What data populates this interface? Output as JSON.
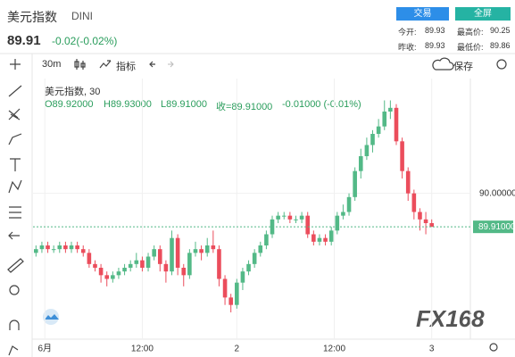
{
  "header": {
    "title": "美元指数",
    "symbol": "DINI",
    "price": "89.91",
    "change": "-0.02(-0.02%)",
    "trade_button": "交易",
    "fullscreen_button": "全屏",
    "stats": [
      {
        "label": "今开:",
        "value": "89.93"
      },
      {
        "label": "最高价:",
        "value": "90.25"
      },
      {
        "label": "昨收:",
        "value": "89.93"
      },
      {
        "label": "最低价:",
        "value": "89.86"
      }
    ]
  },
  "toolbar": {
    "interval": "30m",
    "indicators": "指标",
    "save": "保存"
  },
  "legend": {
    "name": "美元指数, 30",
    "open": "O89.92000",
    "high": "H89.93000",
    "low": "L89.91000",
    "close": "收=89.91000",
    "change": "-0.01000 (-0.01%)"
  },
  "watermark": "FX168",
  "chart_data": {
    "type": "candlestick",
    "up_color": "#53b987",
    "down_color": "#eb4d5c",
    "xlim": [
      -0.5,
      67.5
    ],
    "xticks": [
      {
        "value": 1.5,
        "label": "6月"
      },
      {
        "value": 18,
        "label": "12:00"
      },
      {
        "value": 34,
        "label": "2"
      },
      {
        "value": 50.5,
        "label": "12:00"
      },
      {
        "value": 67,
        "label": "3"
      }
    ],
    "ylim": [
      89.62,
      90.28
    ],
    "yticks": [
      {
        "value": 90,
        "label": "90.00000"
      }
    ],
    "last_label": "89.91000",
    "grid": true,
    "series": [
      {
        "name": "美元指数",
        "open": [
          89.84,
          89.85,
          89.86,
          89.85,
          89.85,
          89.86,
          89.85,
          89.86,
          89.85,
          89.84,
          89.81,
          89.8,
          89.78,
          89.77,
          89.78,
          89.79,
          89.8,
          89.81,
          89.82,
          89.8,
          89.83,
          89.85,
          89.81,
          89.79,
          89.88,
          89.8,
          89.78,
          89.84,
          89.85,
          89.84,
          89.86,
          89.85,
          89.77,
          89.72,
          89.7,
          89.76,
          89.79,
          89.81,
          89.84,
          89.86,
          89.89,
          89.93,
          89.94,
          89.94,
          89.93,
          89.93,
          89.94,
          89.89,
          89.87,
          89.88,
          89.87,
          89.9,
          89.94,
          89.95,
          89.99,
          90.06,
          90.1,
          90.13,
          90.16,
          90.18,
          90.22,
          90.23,
          90.14,
          90.06,
          90.0,
          89.95,
          89.93,
          89.92
        ],
        "high": [
          89.86,
          89.87,
          89.87,
          89.86,
          89.87,
          89.87,
          89.87,
          89.87,
          89.86,
          89.85,
          89.82,
          89.81,
          89.79,
          89.79,
          89.8,
          89.81,
          89.82,
          89.84,
          89.83,
          89.84,
          89.86,
          89.86,
          89.82,
          89.9,
          89.89,
          89.81,
          89.85,
          89.87,
          89.86,
          89.88,
          89.9,
          89.86,
          89.78,
          89.73,
          89.77,
          89.8,
          89.82,
          89.85,
          89.87,
          89.9,
          89.94,
          89.95,
          89.95,
          89.95,
          89.94,
          89.95,
          89.95,
          89.9,
          89.89,
          89.89,
          89.91,
          89.95,
          89.97,
          90.0,
          90.07,
          90.12,
          90.15,
          90.17,
          90.2,
          90.25,
          90.25,
          90.24,
          90.15,
          90.07,
          90.01,
          89.96,
          89.95,
          89.93
        ],
        "low": [
          89.83,
          89.84,
          89.84,
          89.84,
          89.84,
          89.84,
          89.84,
          89.84,
          89.83,
          89.8,
          89.79,
          89.76,
          89.75,
          89.76,
          89.77,
          89.78,
          89.79,
          89.8,
          89.79,
          89.79,
          89.82,
          89.79,
          89.76,
          89.78,
          89.78,
          89.75,
          89.77,
          89.83,
          89.82,
          89.83,
          89.84,
          89.75,
          89.7,
          89.68,
          89.69,
          89.74,
          89.78,
          89.8,
          89.83,
          89.85,
          89.88,
          89.92,
          89.93,
          89.92,
          89.92,
          89.92,
          89.88,
          89.86,
          89.86,
          89.86,
          89.86,
          89.89,
          89.93,
          89.94,
          89.98,
          90.04,
          90.09,
          90.11,
          90.15,
          90.17,
          90.2,
          90.13,
          90.04,
          89.98,
          89.93,
          89.9,
          89.89,
          89.91
        ],
        "close": [
          89.85,
          89.86,
          89.85,
          89.85,
          89.86,
          89.85,
          89.86,
          89.85,
          89.84,
          89.81,
          89.8,
          89.78,
          89.77,
          89.78,
          89.79,
          89.8,
          89.81,
          89.82,
          89.8,
          89.83,
          89.85,
          89.81,
          89.79,
          89.88,
          89.8,
          89.78,
          89.84,
          89.85,
          89.84,
          89.86,
          89.85,
          89.77,
          89.72,
          89.7,
          89.76,
          89.79,
          89.81,
          89.84,
          89.86,
          89.89,
          89.93,
          89.94,
          89.94,
          89.93,
          89.93,
          89.94,
          89.89,
          89.87,
          89.88,
          89.87,
          89.9,
          89.94,
          89.95,
          89.99,
          90.06,
          90.1,
          90.13,
          90.16,
          90.18,
          90.22,
          90.23,
          90.14,
          90.06,
          90.0,
          89.95,
          89.93,
          89.92,
          89.91
        ]
      }
    ]
  }
}
